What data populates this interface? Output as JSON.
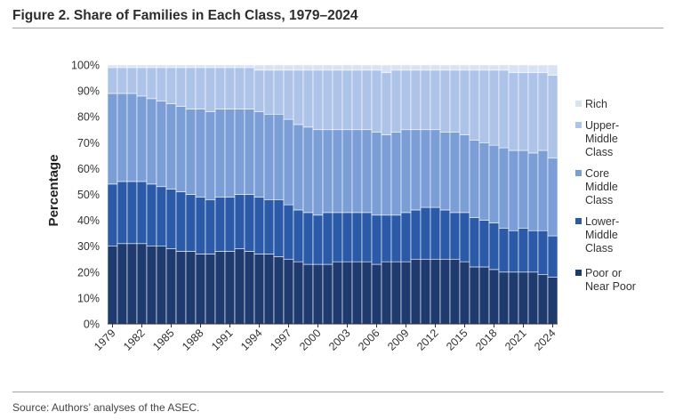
{
  "figure": {
    "title": "Figure 2. Share of Families in Each Class, 1979–2024",
    "source": "Source: Authors’ analyses of the ASEC."
  },
  "colors": {
    "poor": "#1e3a6e",
    "lower_middle": "#2b5aa8",
    "core_middle": "#7b9ed6",
    "upper_middle": "#aec3e8",
    "rich": "#d7e2f4",
    "separator": "#ffffff"
  },
  "chart_data": {
    "type": "stacked-bar",
    "ylabel": "Percentage",
    "xlabel": "",
    "ylim": [
      0,
      100
    ],
    "y_ticks": [
      "0%",
      "10%",
      "20%",
      "30%",
      "40%",
      "50%",
      "60%",
      "70%",
      "80%",
      "90%",
      "100%"
    ],
    "x_tick_labels": [
      "1979",
      "1982",
      "1985",
      "1988",
      "1991",
      "1994",
      "1997",
      "2000",
      "2003",
      "2006",
      "2009",
      "2012",
      "2015",
      "2018",
      "2021",
      "2024"
    ],
    "categories": [
      "1979",
      "1980",
      "1981",
      "1982",
      "1983",
      "1984",
      "1985",
      "1986",
      "1987",
      "1988",
      "1989",
      "1990",
      "1991",
      "1992",
      "1993",
      "1994",
      "1995",
      "1996",
      "1997",
      "1998",
      "1999",
      "2000",
      "2001",
      "2002",
      "2003",
      "2004",
      "2005",
      "2006",
      "2007",
      "2008",
      "2009",
      "2010",
      "2011",
      "2012",
      "2013",
      "2014",
      "2015",
      "2016",
      "2017",
      "2018",
      "2019",
      "2020",
      "2021",
      "2022",
      "2023",
      "2024"
    ],
    "legend_position": "right",
    "series": [
      {
        "name": "Poor or Near Poor",
        "color_key": "poor",
        "values": [
          30,
          31,
          31,
          31,
          30,
          30,
          29,
          28,
          28,
          27,
          27,
          28,
          28,
          29,
          28,
          27,
          27,
          26,
          25,
          24,
          23,
          23,
          23,
          24,
          24,
          24,
          24,
          23,
          24,
          24,
          24,
          25,
          25,
          25,
          25,
          25,
          24,
          22,
          22,
          21,
          20,
          20,
          20,
          20,
          19,
          18
        ]
      },
      {
        "name": "Lower-Middle Class",
        "color_key": "lower_middle",
        "values": [
          24,
          24,
          24,
          24,
          24,
          23,
          23,
          23,
          22,
          22,
          21,
          21,
          21,
          21,
          22,
          22,
          21,
          22,
          21,
          20,
          20,
          19,
          20,
          19,
          19,
          19,
          19,
          19,
          18,
          18,
          19,
          19,
          20,
          20,
          19,
          18,
          19,
          19,
          18,
          18,
          17,
          16,
          17,
          16,
          17,
          16
        ]
      },
      {
        "name": "Core Middle Class",
        "color_key": "core_middle",
        "values": [
          35,
          34,
          34,
          33,
          33,
          33,
          33,
          33,
          33,
          34,
          34,
          34,
          34,
          33,
          33,
          33,
          33,
          33,
          33,
          33,
          33,
          33,
          32,
          32,
          32,
          32,
          32,
          32,
          31,
          32,
          32,
          31,
          30,
          30,
          30,
          31,
          30,
          30,
          30,
          30,
          31,
          31,
          30,
          30,
          31,
          30
        ]
      },
      {
        "name": "Upper-Middle Class",
        "color_key": "upper_middle",
        "values": [
          10,
          10,
          10,
          11,
          12,
          13,
          14,
          15,
          16,
          16,
          17,
          16,
          16,
          16,
          16,
          16,
          17,
          17,
          19,
          21,
          22,
          23,
          23,
          23,
          23,
          23,
          23,
          24,
          24,
          24,
          23,
          23,
          23,
          23,
          24,
          24,
          25,
          27,
          28,
          29,
          30,
          30,
          30,
          31,
          30,
          32
        ]
      },
      {
        "name": "Rich",
        "color_key": "rich",
        "values": [
          1,
          1,
          1,
          1,
          1,
          1,
          1,
          1,
          1,
          1,
          1,
          1,
          1,
          1,
          1,
          2,
          2,
          2,
          2,
          2,
          2,
          2,
          2,
          2,
          2,
          2,
          2,
          2,
          3,
          2,
          2,
          2,
          2,
          2,
          2,
          2,
          2,
          2,
          2,
          2,
          2,
          3,
          3,
          3,
          3,
          4
        ]
      }
    ]
  },
  "legend": {
    "items": [
      {
        "key": "rich",
        "lines": [
          "Rich"
        ]
      },
      {
        "key": "upper_middle",
        "lines": [
          "Upper-",
          "Middle",
          "Class"
        ]
      },
      {
        "key": "core_middle",
        "lines": [
          "Core",
          "Middle",
          "Class"
        ]
      },
      {
        "key": "lower_middle",
        "lines": [
          "Lower-",
          "Middle",
          "Class"
        ]
      },
      {
        "key": "poor",
        "lines": [
          "Poor or",
          "Near Poor"
        ]
      }
    ]
  }
}
